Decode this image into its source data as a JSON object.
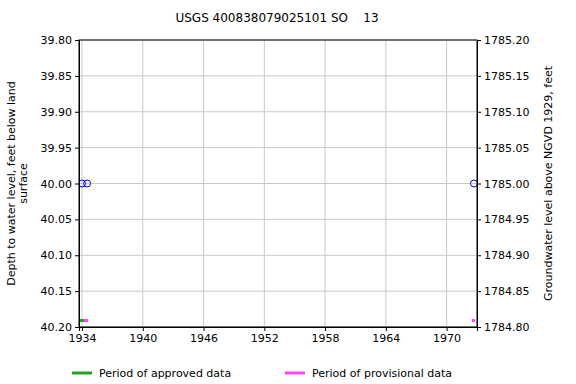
{
  "chart_data": {
    "type": "scatter",
    "title": "USGS 400838079025101 SO    13",
    "y_label": [
      "Depth to water level, feet below land",
      "surface"
    ],
    "y2_label": "Groundwater level above NGVD 1929, feet",
    "x": [
      1934.0,
      1934.5,
      1972.7
    ],
    "series": [
      {
        "values": [
          40.0,
          40.0,
          40.0
        ],
        "color": "#0000ff",
        "marker": "open-circle"
      }
    ],
    "xlim": [
      1933.7,
      1973.0
    ],
    "xticks": [
      1934,
      1940,
      1946,
      1952,
      1958,
      1964,
      1970
    ],
    "ylim": [
      40.2,
      39.8
    ],
    "yticks": [
      {
        "value": 39.8,
        "label": "39.80"
      },
      {
        "value": 39.85,
        "label": "39.85"
      },
      {
        "value": 39.9,
        "label": "39.90"
      },
      {
        "value": 39.95,
        "label": "39.95"
      },
      {
        "value": 40.0,
        "label": "40.00"
      },
      {
        "value": 40.05,
        "label": "40.05"
      },
      {
        "value": 40.1,
        "label": "40.10"
      },
      {
        "value": 40.15,
        "label": "40.15"
      },
      {
        "value": 40.2,
        "label": "40.20"
      }
    ],
    "y2lim": [
      1784.8,
      1785.2
    ],
    "y2ticks": [
      {
        "value": 1785.2,
        "label": "1785.20"
      },
      {
        "value": 1785.15,
        "label": "1785.15"
      },
      {
        "value": 1785.1,
        "label": "1785.10"
      },
      {
        "value": 1785.05,
        "label": "1785.05"
      },
      {
        "value": 1785.0,
        "label": "1785.00"
      },
      {
        "value": 1784.95,
        "label": "1784.95"
      },
      {
        "value": 1784.9,
        "label": "1784.90"
      },
      {
        "value": 1784.85,
        "label": "1784.85"
      },
      {
        "value": 1784.8,
        "label": "1784.80"
      }
    ],
    "periods": [
      {
        "name": "Period of approved data",
        "color": "#22a022",
        "ranges": [
          [
            1933.8,
            1934.2
          ]
        ]
      },
      {
        "name": "Period of provisional data",
        "color": "#ff44ff",
        "ranges": [
          [
            1934.2,
            1934.6
          ],
          [
            1972.5,
            1972.8
          ]
        ]
      }
    ],
    "grid": true
  }
}
